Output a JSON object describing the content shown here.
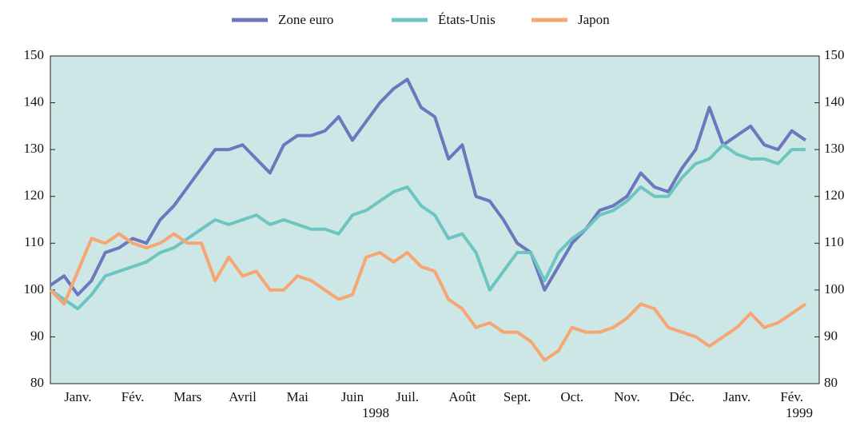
{
  "chart_data": {
    "type": "line",
    "categories": [
      null,
      null,
      "Janv.",
      null,
      null,
      null,
      "Fév.",
      null,
      null,
      null,
      "Mars",
      null,
      null,
      null,
      "Avril",
      null,
      null,
      null,
      "Mai",
      null,
      null,
      null,
      "Juin",
      null,
      null,
      null,
      "Juil.",
      null,
      null,
      null,
      "Août",
      null,
      null,
      null,
      "Sept.",
      null,
      null,
      null,
      "Oct.",
      null,
      null,
      null,
      "Nov.",
      null,
      null,
      null,
      "Déc.",
      null,
      null,
      null,
      "Janv.",
      null,
      null,
      null,
      "Fév.",
      null
    ],
    "annotations": [
      "1998",
      "1999"
    ],
    "series": [
      {
        "name": "Zone euro",
        "color": "#6b78bd",
        "values": [
          101,
          103,
          99,
          102,
          108,
          109,
          111,
          110,
          115,
          118,
          122,
          126,
          130,
          130,
          131,
          128,
          125,
          131,
          133,
          133,
          134,
          137,
          132,
          136,
          140,
          143,
          145,
          139,
          137,
          128,
          131,
          120,
          119,
          115,
          110,
          108,
          100,
          105,
          110,
          113,
          117,
          118,
          120,
          125,
          122,
          121,
          126,
          130,
          139,
          131,
          133,
          135,
          131,
          130,
          134,
          132
        ]
      },
      {
        "name": "États-Unis",
        "color": "#6cc5c0",
        "values": [
          100,
          98,
          96,
          99,
          103,
          104,
          105,
          106,
          108,
          109,
          111,
          113,
          115,
          114,
          115,
          116,
          114,
          115,
          114,
          113,
          113,
          112,
          116,
          117,
          119,
          121,
          122,
          118,
          116,
          111,
          112,
          108,
          100,
          104,
          108,
          108,
          102,
          108,
          111,
          113,
          116,
          117,
          119,
          122,
          120,
          120,
          124,
          127,
          128,
          131,
          129,
          128,
          128,
          127,
          130,
          130
        ]
      },
      {
        "name": "Japon",
        "color": "#f5a672",
        "values": [
          100,
          97,
          104,
          111,
          110,
          112,
          110,
          109,
          110,
          112,
          110,
          110,
          102,
          107,
          103,
          104,
          100,
          100,
          103,
          102,
          100,
          98,
          99,
          107,
          108,
          106,
          108,
          105,
          104,
          98,
          96,
          92,
          93,
          91,
          91,
          89,
          85,
          87,
          92,
          91,
          91,
          92,
          94,
          97,
          96,
          92,
          91,
          90,
          88,
          90,
          92,
          95,
          92,
          93,
          95,
          97
        ]
      }
    ],
    "ylim": [
      80,
      150
    ],
    "yticks": [
      80,
      90,
      100,
      110,
      120,
      130,
      140,
      150
    ]
  }
}
